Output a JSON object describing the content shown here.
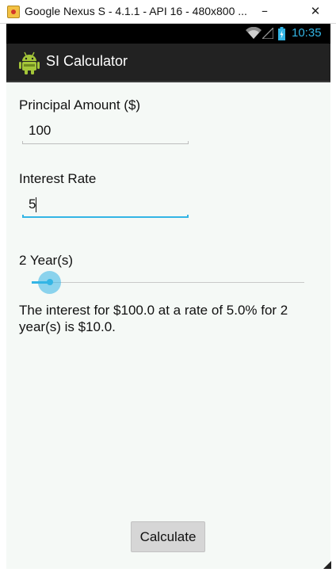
{
  "window": {
    "title": "Google Nexus S - 4.1.1 - API 16 - 480x800 ...",
    "minimize_glyph": "–",
    "close_glyph": "✕"
  },
  "status_bar": {
    "time": "10:35",
    "icons": [
      "wifi-icon",
      "signal-icon",
      "battery-icon"
    ],
    "accent_color": "#33b5e5"
  },
  "action_bar": {
    "title": "SI Calculator",
    "logo_icon": "android-robot-icon"
  },
  "form": {
    "principal_label": "Principal Amount ($)",
    "principal_value": "100",
    "rate_label": "Interest Rate",
    "rate_value": "5",
    "years_label": "2 Year(s)",
    "years_slider_fraction": 0.06
  },
  "result": {
    "text": "The interest for $100.0 at a rate of 5.0% for 2 year(s) is $10.0."
  },
  "button": {
    "calculate_label": "Calculate"
  }
}
